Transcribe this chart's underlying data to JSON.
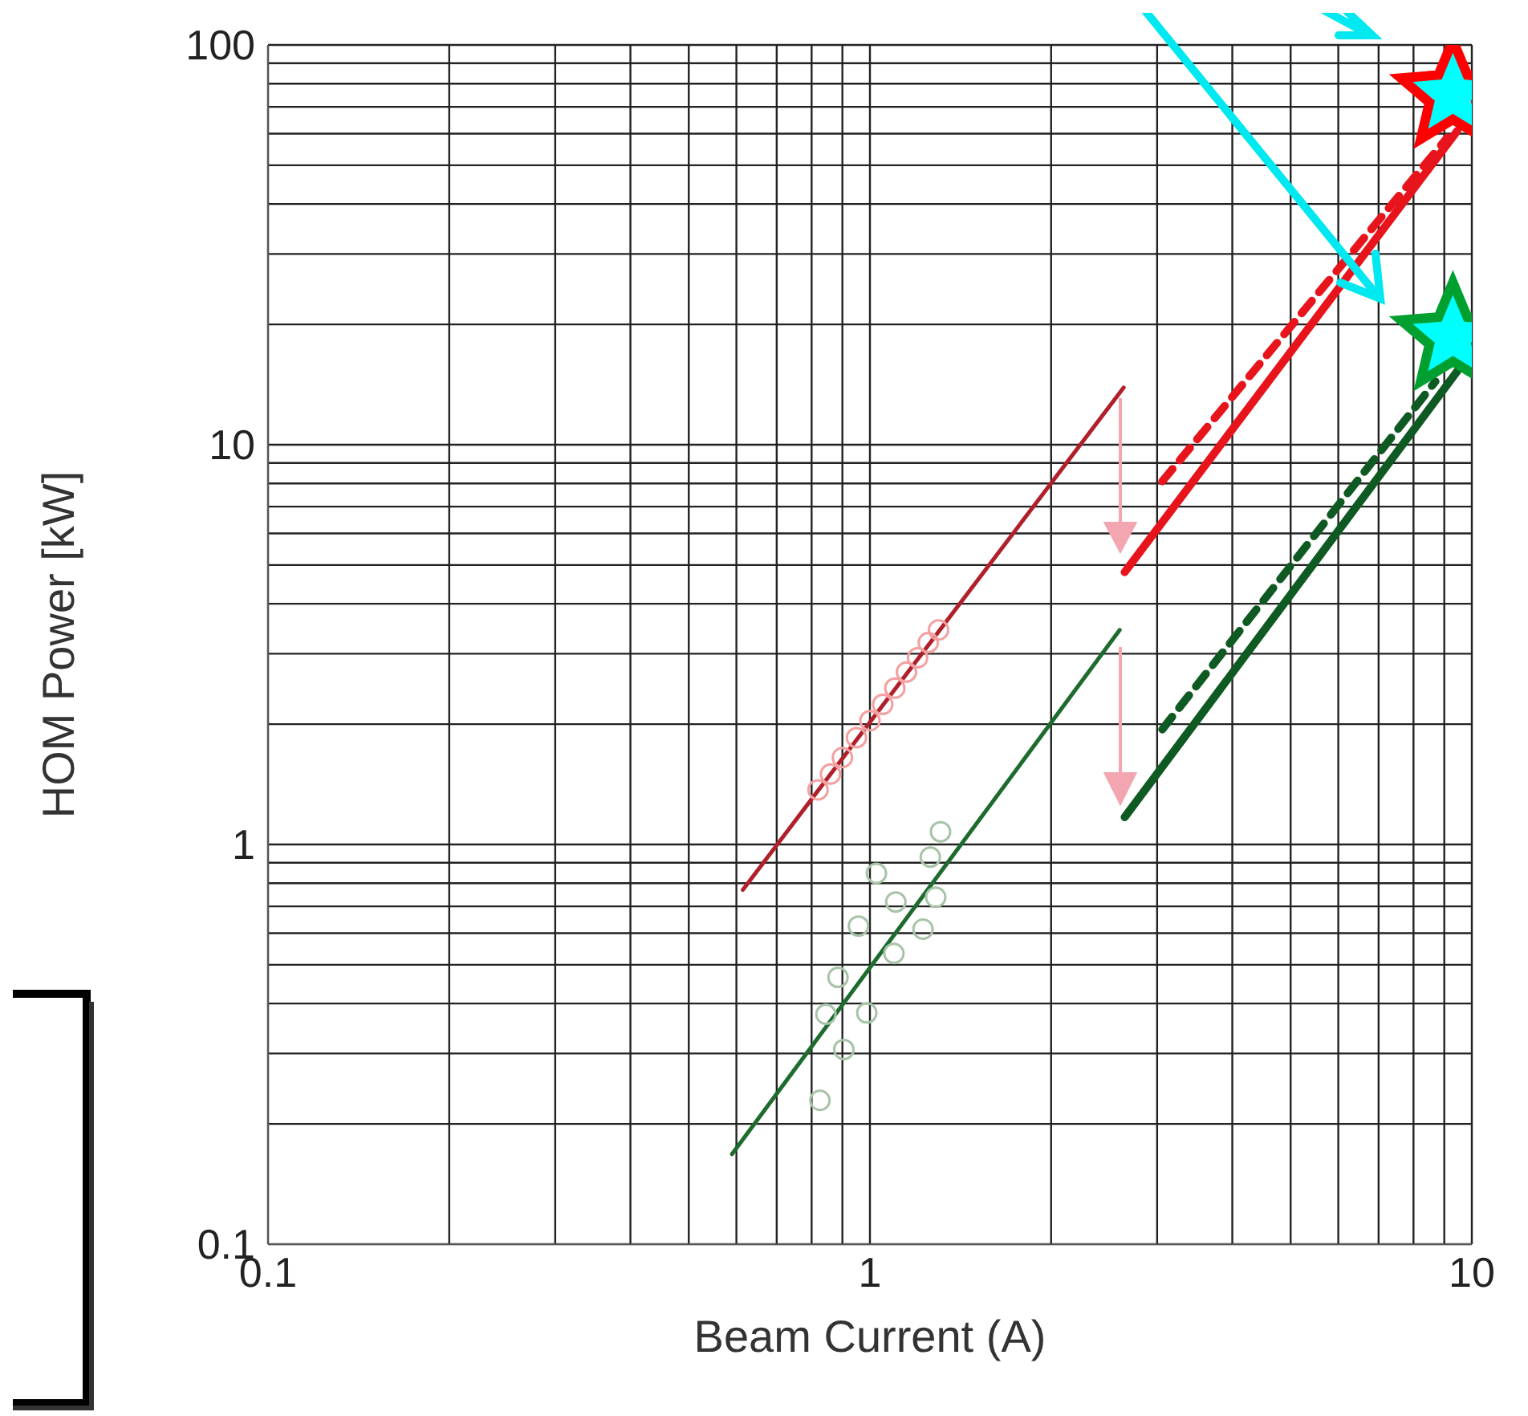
{
  "chart_data": {
    "type": "line",
    "xlabel": "Beam Current (A)",
    "ylabel": "HOM Power [kW]",
    "log": "xy",
    "grid": true,
    "legend": false,
    "xlim": [
      0.1,
      10
    ],
    "ylim": [
      0.1,
      100
    ],
    "xticks": [
      0.1,
      {
        "value": 0.2,
        "label": null
      },
      {
        "value": 0.3,
        "label": null
      },
      {
        "value": 0.4,
        "label": null
      },
      {
        "value": 0.5,
        "label": null
      },
      {
        "value": 0.6,
        "label": null
      },
      {
        "value": 0.7,
        "label": null
      },
      {
        "value": 0.8,
        "label": null
      },
      {
        "value": 0.9,
        "label": null
      },
      1,
      {
        "value": 2,
        "label": null
      },
      {
        "value": 3,
        "label": null
      },
      {
        "value": 4,
        "label": null
      },
      {
        "value": 5,
        "label": null
      },
      {
        "value": 6,
        "label": null
      },
      {
        "value": 7,
        "label": null
      },
      {
        "value": 8,
        "label": null
      },
      {
        "value": 9,
        "label": null
      },
      10
    ],
    "yticks": [
      0.1,
      {
        "value": 0.2,
        "label": null
      },
      {
        "value": 0.3,
        "label": null
      },
      {
        "value": 0.4,
        "label": null
      },
      {
        "value": 0.5,
        "label": null
      },
      {
        "value": 0.6,
        "label": null
      },
      {
        "value": 0.7,
        "label": null
      },
      {
        "value": 0.8,
        "label": null
      },
      {
        "value": 0.9,
        "label": null
      },
      1,
      {
        "value": 2,
        "label": null
      },
      {
        "value": 3,
        "label": null
      },
      {
        "value": 4,
        "label": null
      },
      {
        "value": 5,
        "label": null
      },
      {
        "value": 6,
        "label": null
      },
      {
        "value": 7,
        "label": null
      },
      {
        "value": 8,
        "label": null
      },
      {
        "value": 9,
        "label": null
      },
      10,
      {
        "value": 20,
        "label": null
      },
      {
        "value": 30,
        "label": null
      },
      {
        "value": 40,
        "label": null
      },
      {
        "value": 50,
        "label": null
      },
      {
        "value": 60,
        "label": null
      },
      {
        "value": 70,
        "label": null
      },
      {
        "value": 80,
        "label": null
      },
      {
        "value": 90,
        "label": null
      },
      100
    ],
    "series": [
      {
        "type": "scatter",
        "marker": "circle",
        "color": "#f4a0a0",
        "x": [
          0.82,
          0.86,
          0.9,
          0.95,
          1.0,
          1.05,
          1.1,
          1.15,
          1.2,
          1.25,
          1.3
        ],
        "values": [
          1.37,
          1.5,
          1.65,
          1.85,
          2.04,
          2.24,
          2.46,
          2.7,
          2.93,
          3.2,
          3.44
        ]
      },
      {
        "type": "scatter",
        "marker": "circle",
        "color": "#a8c4a8",
        "x": [
          0.826,
          0.905,
          0.845,
          0.988,
          0.885,
          0.957,
          1.025,
          1.096,
          1.104,
          1.225,
          1.286,
          1.31,
          1.26
        ],
        "values": [
          0.229,
          0.307,
          0.376,
          0.379,
          0.465,
          0.625,
          0.847,
          0.534,
          0.718,
          0.614,
          0.738,
          1.076,
          0.93
        ]
      },
      {
        "marker": "none",
        "line_style": "solid",
        "color": "#b0202a",
        "x": [
          0.615,
          2.64
        ],
        "values": [
          0.77,
          13.9
        ]
      },
      {
        "marker": "none",
        "line_style": "solid",
        "color": "#1e6b2e",
        "x": [
          0.59,
          2.6
        ],
        "values": [
          0.168,
          3.44
        ]
      },
      {
        "marker": "none",
        "line_style": "solid",
        "color": "#e8141c",
        "x": [
          2.65,
          9.46
        ],
        "values": [
          4.8,
          61
        ]
      },
      {
        "marker": "none",
        "line_style": "dashed",
        "color": "#e8141c",
        "x": [
          3.06,
          9.1
        ],
        "values": [
          8.1,
          58.6
        ]
      },
      {
        "marker": "none",
        "line_style": "solid",
        "color": "#0f5a23",
        "x": [
          2.65,
          9.5
        ],
        "values": [
          1.17,
          15.4
        ]
      },
      {
        "marker": "none",
        "line_style": "dashed",
        "color": "#0f5a23",
        "x": [
          3.06,
          8.7
        ],
        "values": [
          1.94,
          14.4
        ]
      },
      {
        "type": "scatter",
        "marker": "star",
        "color": "#ff0000",
        "x": [
          9.3
        ],
        "values": [
          75
        ]
      },
      {
        "type": "scatter",
        "marker": "star",
        "color": "#00a030",
        "x": [
          9.3
        ],
        "values": [
          18.6
        ]
      }
    ]
  }
}
